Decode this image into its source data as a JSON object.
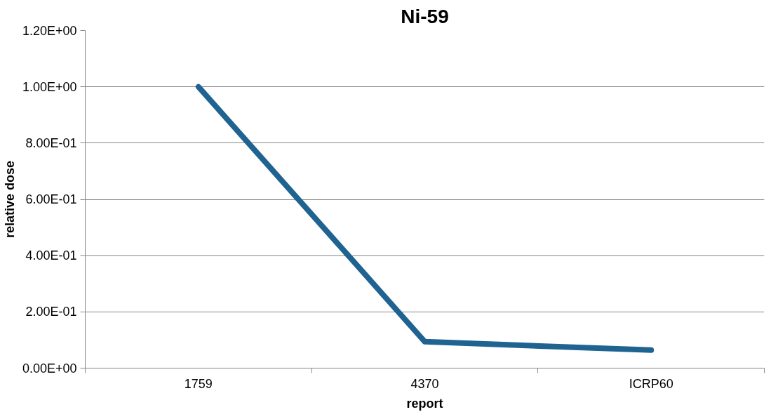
{
  "chart_data": {
    "type": "line",
    "title": "Ni-59",
    "xlabel": "report",
    "ylabel": "relative dose",
    "categories": [
      "1759",
      "4370",
      "ICRP60"
    ],
    "series": [
      {
        "color": "#1f6391",
        "values": [
          1.0,
          0.094,
          0.064
        ]
      }
    ],
    "ylim": [
      0,
      1.2
    ],
    "yticks": [
      {
        "value": 0,
        "label": "0.00E+00"
      },
      {
        "value": 0.2,
        "label": "2.00E-01"
      },
      {
        "value": 0.4,
        "label": "4.00E-01"
      },
      {
        "value": 0.6,
        "label": "6.00E-01"
      },
      {
        "value": 0.8,
        "label": "8.00E-01"
      },
      {
        "value": 1.0,
        "label": "1.00E+00"
      },
      {
        "value": 1.2,
        "label": "1.20E+00"
      }
    ],
    "grid": "y",
    "marker": "none",
    "line_style": "solid"
  }
}
